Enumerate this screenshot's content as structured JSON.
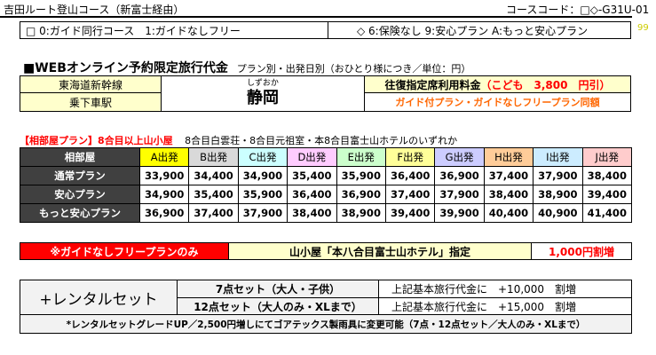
{
  "header": {
    "course_name": "吉田ルート登山コース（新富士経由）",
    "course_code": "コースコード：□◇-G31U-01",
    "code_left": "□ 0:ガイド同行コース　1:ガイドなしフリー",
    "code_right": "◇ 6:保険なし 9:安心プラン A:もっと安心プラン",
    "page_no": "99"
  },
  "title": {
    "main": "■WEBオンライン予約限定旅行代金",
    "sub": "プラン別・出発日別（おひとり様につき／単位：円）"
  },
  "station": {
    "line_label": "東海道新幹線",
    "stop_label": "乗下車駅",
    "reading": "しずおか",
    "name": "静岡",
    "fare_label": "往復指定席利用料金",
    "child_note": "（こども　3,800　円引）",
    "guide_note": "ガイド付プラン・ガイドなしフリープラン同額"
  },
  "aibeya": {
    "label": "【相部屋プラン】8合目以上山小屋",
    "huts": "8合目白雲荘・8合目元祖室・本8合目富士山ホテルのいずれか"
  },
  "colors": {
    "A": "#ffff00",
    "B": "#d9d9d9",
    "C": "#ccffff",
    "D": "#ffccff",
    "E": "#ccffcc",
    "F": "#ffff99",
    "G": "#ccccff",
    "H": "#ffcc99",
    "I": "#ccecff",
    "J": "#ffcccc",
    "header_dark": "#404040",
    "red_note": "#ff0000",
    "orange_note": "#ff6600",
    "banner": "#ff0000",
    "cream": "#ffffcc"
  },
  "price_table": {
    "corner": "相部屋",
    "columns": [
      "A出発",
      "B出発",
      "C出発",
      "D出発",
      "E出発",
      "F出発",
      "G出発",
      "H出発",
      "I出発",
      "J出発"
    ],
    "rows": [
      {
        "plan": "通常プラン",
        "prices": [
          "33,900",
          "34,400",
          "34,900",
          "35,400",
          "35,900",
          "36,400",
          "36,900",
          "37,400",
          "37,900",
          "38,400"
        ]
      },
      {
        "plan": "安心プラン",
        "prices": [
          "34,900",
          "35,400",
          "35,900",
          "36,400",
          "36,900",
          "37,400",
          "37,900",
          "38,400",
          "38,900",
          "39,400"
        ]
      },
      {
        "plan": "もっと安心プラン",
        "prices": [
          "36,900",
          "37,400",
          "37,900",
          "38,400",
          "38,900",
          "39,400",
          "39,900",
          "40,400",
          "40,900",
          "41,400"
        ]
      }
    ]
  },
  "free_plan": {
    "banner": "※ガイドなしフリープランのみ",
    "hut": "山小屋「本八合目富士山ホテル」指定",
    "surcharge": "1,000円割増"
  },
  "rental": {
    "label": "+レンタルセット",
    "rows": [
      {
        "set": "7点セット（大人・子供）",
        "desc": "上記基本旅行代金に　+10,000　割増"
      },
      {
        "set": "12点セット（大人のみ・XLまで）",
        "desc": "上記基本旅行代金に　+15,000　割増"
      }
    ],
    "note": "*レンタルセットグレードUP／2,500円増しにてゴアテックス製雨具に変更可能（7点・12点セット／大人のみ・XLまで）"
  }
}
